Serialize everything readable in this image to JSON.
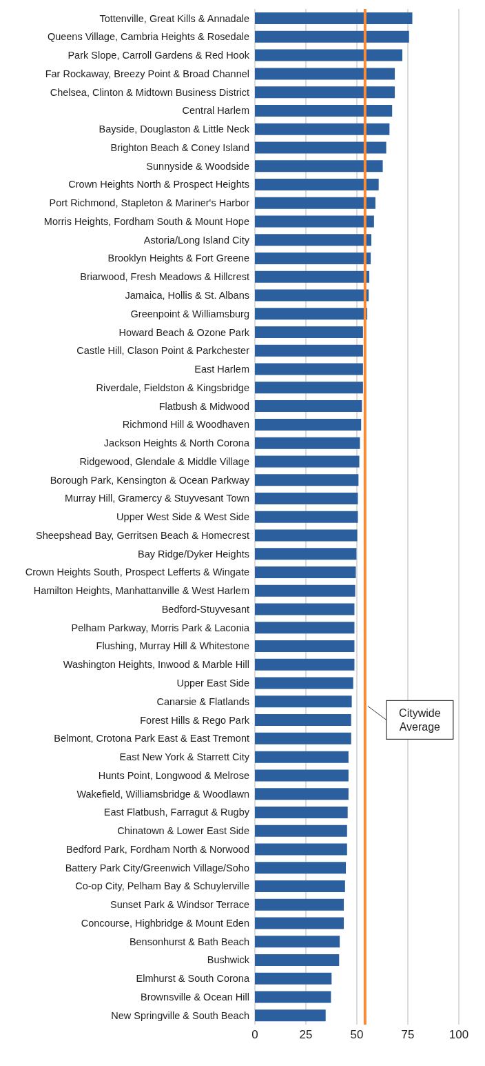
{
  "chart_data": {
    "type": "bar",
    "orientation": "horizontal",
    "categories": [
      "Tottenville, Great Kills & Annadale",
      "Queens Village, Cambria Heights & Rosedale",
      "Park Slope, Carroll Gardens & Red Hook",
      "Far Rockaway, Breezy Point & Broad Channel",
      "Chelsea, Clinton & Midtown Business District",
      "Central Harlem",
      "Bayside, Douglaston & Little Neck",
      "Brighton Beach & Coney Island",
      "Sunnyside & Woodside",
      "Crown Heights North & Prospect Heights",
      "Port Richmond, Stapleton & Mariner's Harbor",
      "Morris Heights, Fordham South & Mount Hope",
      "Astoria/Long Island City",
      "Brooklyn Heights & Fort Greene",
      "Briarwood, Fresh Meadows & Hillcrest",
      "Jamaica, Hollis & St. Albans",
      "Greenpoint & Williamsburg",
      "Howard Beach & Ozone Park",
      "Castle Hill, Clason Point & Parkchester",
      "East Harlem",
      "Riverdale, Fieldston & Kingsbridge",
      "Flatbush & Midwood",
      "Richmond Hill & Woodhaven",
      "Jackson Heights & North Corona",
      "Ridgewood, Glendale & Middle Village",
      "Borough Park, Kensington & Ocean Parkway",
      "Murray Hill, Gramercy & Stuyvesant Town",
      "Upper West Side & West Side",
      "Sheepshead Bay, Gerritsen Beach & Homecrest",
      "Bay Ridge/Dyker Heights",
      "Crown Heights South, Prospect Lefferts & Wingate",
      "Hamilton Heights, Manhattanville & West Harlem",
      "Bedford-Stuyvesant",
      "Pelham Parkway, Morris Park & Laconia",
      "Flushing, Murray Hill & Whitestone",
      "Washington Heights, Inwood & Marble Hill",
      "Upper East Side",
      "Canarsie & Flatlands",
      "Forest Hills & Rego Park",
      "Belmont, Crotona Park East & East Tremont",
      "East New York & Starrett City",
      "Hunts Point, Longwood & Melrose",
      "Wakefield, Williamsbridge & Woodlawn",
      "East Flatbush, Farragut & Rugby",
      "Chinatown & Lower East Side",
      "Bedford Park, Fordham North & Norwood",
      "Battery Park City/Greenwich Village/Soho",
      "Co-op City, Pelham Bay & Schuylerville",
      "Sunset Park & Windsor Terrace",
      "Concourse, Highbridge & Mount Eden",
      "Bensonhurst & Bath Beach",
      "Bushwick",
      "Elmhurst & South Corona",
      "Brownsville & Ocean Hill",
      "New Springville & South Beach"
    ],
    "values": [
      77.2,
      75.6,
      72.3,
      68.6,
      68.6,
      67.3,
      66.0,
      64.4,
      62.7,
      60.7,
      59.1,
      58.4,
      57.1,
      56.8,
      56.1,
      55.8,
      55.1,
      53.0,
      53.0,
      53.0,
      53.0,
      52.5,
      52.1,
      51.5,
      51.2,
      50.8,
      50.5,
      50.5,
      50.2,
      49.8,
      49.5,
      49.2,
      48.8,
      48.8,
      48.8,
      48.8,
      48.2,
      47.5,
      47.2,
      47.2,
      45.9,
      45.9,
      45.9,
      45.5,
      45.2,
      45.2,
      44.6,
      44.2,
      43.6,
      43.6,
      41.6,
      41.3,
      37.6,
      37.3,
      34.7
    ],
    "color": "#2b5f9e",
    "xlim": [
      0,
      100
    ],
    "xticks": [
      0,
      25,
      50,
      75,
      100
    ],
    "grid": "x",
    "legend": false,
    "ref_lines": [
      {
        "axis": "x",
        "value": 54,
        "label": "Citywide Average",
        "color": "#f58c3c"
      }
    ]
  }
}
